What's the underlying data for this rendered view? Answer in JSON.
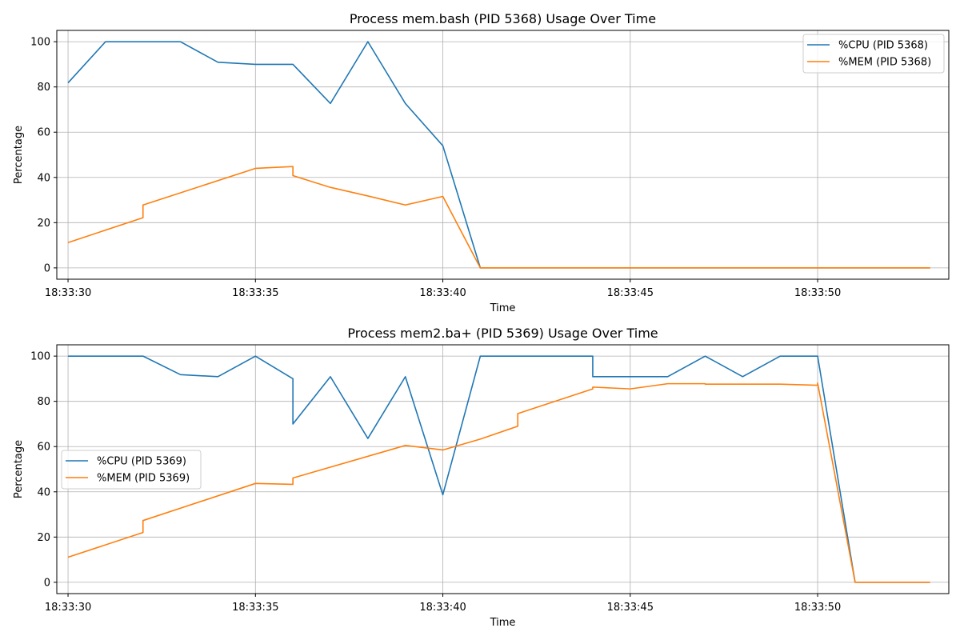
{
  "chart_data": [
    {
      "type": "line",
      "title": "Process mem.bash (PID 5368) Usage Over Time",
      "xlabel": "Time",
      "ylabel": "Percentage",
      "xlim": [
        "18:33:29.7",
        "18:33:53.5"
      ],
      "ylim": [
        -5,
        105
      ],
      "yticks": [
        0,
        20,
        40,
        60,
        80,
        100
      ],
      "xticks": [
        "18:33:30",
        "18:33:35",
        "18:33:40",
        "18:33:45",
        "18:33:50"
      ],
      "grid": true,
      "legend_position": "top-right",
      "series": [
        {
          "name": "%CPU (PID 5368)",
          "color": "#1f77b4",
          "points": [
            [
              "18:33:30",
              81.8
            ],
            [
              "18:33:31",
              100
            ],
            [
              "18:33:32",
              100
            ],
            [
              "18:33:33",
              100
            ],
            [
              "18:33:34",
              90.9
            ],
            [
              "18:33:35",
              90
            ],
            [
              "18:33:36",
              90
            ],
            [
              "18:33:37",
              72.7
            ],
            [
              "18:33:38",
              100
            ],
            [
              "18:33:39",
              72.7
            ],
            [
              "18:33:40",
              54
            ],
            [
              "18:33:41",
              0
            ],
            [
              "18:33:53",
              0
            ]
          ]
        },
        {
          "name": "%MEM (PID 5368)",
          "color": "#ff7f0e",
          "points": [
            [
              "18:33:30",
              11.2
            ],
            [
              "18:33:32",
              22.2
            ],
            [
              "18:33:32",
              27.8
            ],
            [
              "18:33:35",
              44
            ],
            [
              "18:33:36",
              44.8
            ],
            [
              "18:33:36",
              40.8
            ],
            [
              "18:33:37",
              35.6
            ],
            [
              "18:33:38",
              31.8
            ],
            [
              "18:33:39",
              27.8
            ],
            [
              "18:33:40",
              31.6
            ],
            [
              "18:33:41",
              0
            ],
            [
              "18:33:53",
              0
            ]
          ]
        }
      ]
    },
    {
      "type": "line",
      "title": "Process mem2.ba+ (PID 5369) Usage Over Time",
      "xlabel": "Time",
      "ylabel": "Percentage",
      "xlim": [
        "18:33:29.7",
        "18:33:53.5"
      ],
      "ylim": [
        -5,
        105
      ],
      "yticks": [
        0,
        20,
        40,
        60,
        80,
        100
      ],
      "xticks": [
        "18:33:30",
        "18:33:35",
        "18:33:40",
        "18:33:45",
        "18:33:50"
      ],
      "grid": true,
      "legend_position": "center-left",
      "series": [
        {
          "name": "%CPU (PID 5369)",
          "color": "#1f77b4",
          "points": [
            [
              "18:33:30",
              100
            ],
            [
              "18:33:32",
              100
            ],
            [
              "18:33:33",
              91.8
            ],
            [
              "18:33:34",
              90.9
            ],
            [
              "18:33:35",
              100
            ],
            [
              "18:33:36",
              90
            ],
            [
              "18:33:36",
              70
            ],
            [
              "18:33:37",
              90.9
            ],
            [
              "18:33:38",
              63.6
            ],
            [
              "18:33:39",
              90.9
            ],
            [
              "18:33:40",
              38.7
            ],
            [
              "18:33:41",
              100
            ],
            [
              "18:33:44",
              100
            ],
            [
              "18:33:44",
              90.9
            ],
            [
              "18:33:46",
              90.9
            ],
            [
              "18:33:47",
              100
            ],
            [
              "18:33:48",
              90.9
            ],
            [
              "18:33:49",
              100
            ],
            [
              "18:33:50",
              100
            ],
            [
              "18:33:51",
              0
            ],
            [
              "18:33:53",
              0
            ]
          ]
        },
        {
          "name": "%MEM (PID 5369)",
          "color": "#ff7f0e",
          "points": [
            [
              "18:33:30",
              11.1
            ],
            [
              "18:33:32",
              22
            ],
            [
              "18:33:32",
              27.3
            ],
            [
              "18:33:35",
              43.7
            ],
            [
              "18:33:36",
              43.3
            ],
            [
              "18:33:36",
              46.1
            ],
            [
              "18:33:39",
              60.5
            ],
            [
              "18:33:40",
              58.5
            ],
            [
              "18:33:41",
              63.3
            ],
            [
              "18:33:42",
              69
            ],
            [
              "18:33:42",
              74.6
            ],
            [
              "18:33:44",
              85.5
            ],
            [
              "18:33:44",
              86.3
            ],
            [
              "18:33:45",
              85.5
            ],
            [
              "18:33:46",
              87.8
            ],
            [
              "18:33:47",
              87.8
            ],
            [
              "18:33:47",
              87.6
            ],
            [
              "18:33:49",
              87.6
            ],
            [
              "18:33:50",
              87.1
            ],
            [
              "18:33:50",
              88.1
            ],
            [
              "18:33:51",
              0
            ],
            [
              "18:33:53",
              0
            ]
          ]
        }
      ]
    }
  ]
}
